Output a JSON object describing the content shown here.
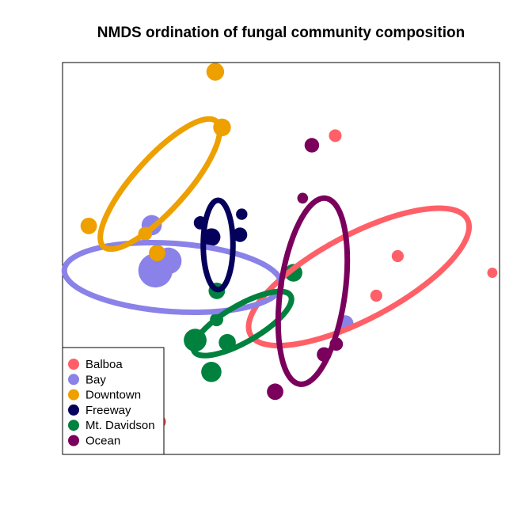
{
  "chart_data": {
    "type": "scatter",
    "title": "NMDS ordination of fungal community composition",
    "xlabel": "",
    "ylabel": "",
    "xlim": [
      -1.0,
      1.0
    ],
    "ylim": [
      -1.0,
      1.0
    ],
    "axes_visible": false,
    "grid": false,
    "legend_position": "bottom-left",
    "series": [
      {
        "name": "Balboa",
        "color": "#ff6068",
        "points": [
          {
            "x": 0.248,
            "y": 0.627,
            "size": 0.5
          },
          {
            "x": 0.534,
            "y": 0.012,
            "size": 0.45
          },
          {
            "x": 0.436,
            "y": -0.19,
            "size": 0.45
          },
          {
            "x": 0.967,
            "y": -0.073,
            "size": 0.3
          },
          {
            "x": -0.552,
            "y": -0.833,
            "size": 0.4
          }
        ],
        "ellipse": {
          "cx": 0.356,
          "cy": -0.094,
          "rx": 0.562,
          "ry": 0.216,
          "angle": -28
        }
      },
      {
        "name": "Bay",
        "color": "#8a82e8",
        "points": [
          {
            "x": -0.592,
            "y": 0.17,
            "size": 1.1
          },
          {
            "x": -0.516,
            "y": -0.012,
            "size": 1.6
          },
          {
            "x": -0.575,
            "y": -0.061,
            "size": 2.2
          },
          {
            "x": 0.294,
            "y": -0.332,
            "size": 0.8
          }
        ],
        "ellipse": {
          "cx": -0.495,
          "cy": -0.097,
          "rx": 0.498,
          "ry": 0.174,
          "angle": 4
        }
      },
      {
        "name": "Downtown",
        "color": "#eda000",
        "points": [
          {
            "x": -0.301,
            "y": 0.953,
            "size": 0.9
          },
          {
            "x": -0.27,
            "y": 0.669,
            "size": 0.9
          },
          {
            "x": -0.88,
            "y": 0.166,
            "size": 0.8
          },
          {
            "x": -0.622,
            "y": 0.126,
            "size": 0.6
          },
          {
            "x": -0.567,
            "y": 0.028,
            "size": 0.8
          }
        ],
        "ellipse": {
          "cx": -0.554,
          "cy": 0.38,
          "rx": 0.386,
          "ry": 0.134,
          "angle": -48
        }
      },
      {
        "name": "Freeway",
        "color": "#05005c",
        "points": [
          {
            "x": -0.369,
            "y": 0.182,
            "size": 0.55
          },
          {
            "x": -0.18,
            "y": 0.226,
            "size": 0.4
          },
          {
            "x": -0.318,
            "y": 0.109,
            "size": 0.9
          },
          {
            "x": -0.188,
            "y": 0.121,
            "size": 0.65
          }
        ],
        "ellipse": {
          "cx": -0.288,
          "cy": 0.069,
          "rx": 0.068,
          "ry": 0.228,
          "angle": 0
        }
      },
      {
        "name": "Mt. Davidson",
        "color": "#00813e",
        "points": [
          {
            "x": -0.294,
            "y": -0.165,
            "size": 0.8
          },
          {
            "x": 0.057,
            "y": -0.073,
            "size": 0.9
          },
          {
            "x": -0.295,
            "y": -0.312,
            "size": 0.55
          },
          {
            "x": -0.393,
            "y": -0.417,
            "size": 1.3
          },
          {
            "x": -0.246,
            "y": -0.429,
            "size": 0.85
          },
          {
            "x": -0.319,
            "y": -0.579,
            "size": 1.1
          }
        ],
        "ellipse": {
          "cx": -0.177,
          "cy": -0.332,
          "rx": 0.255,
          "ry": 0.093,
          "angle": -30
        }
      },
      {
        "name": "Ocean",
        "color": "#7a005c",
        "points": [
          {
            "x": 0.141,
            "y": 0.578,
            "size": 0.65
          },
          {
            "x": 0.099,
            "y": 0.308,
            "size": 0.35
          },
          {
            "x": 0.197,
            "y": -0.49,
            "size": 0.65
          },
          {
            "x": 0.253,
            "y": -0.437,
            "size": 0.55
          },
          {
            "x": -0.027,
            "y": -0.68,
            "size": 0.8
          }
        ],
        "ellipse": {
          "cx": 0.145,
          "cy": -0.167,
          "rx": 0.148,
          "ry": 0.479,
          "angle": 8
        }
      }
    ]
  }
}
